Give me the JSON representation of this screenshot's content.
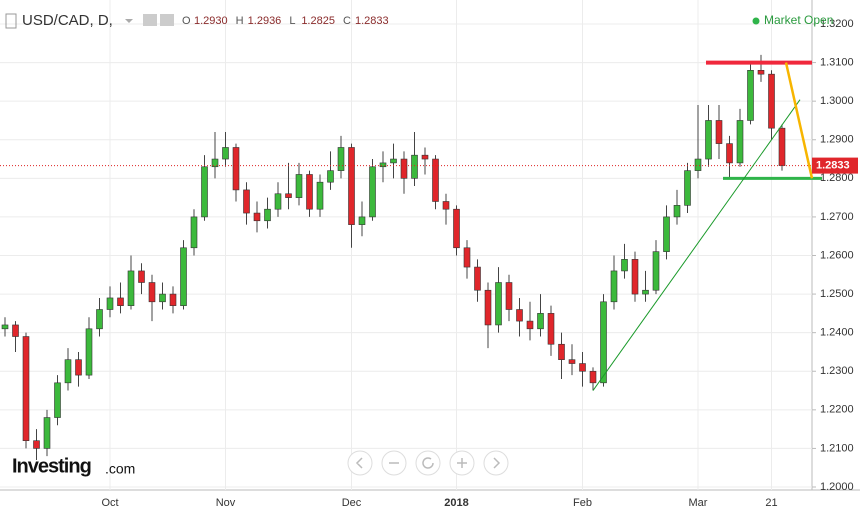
{
  "header": {
    "symbol": "USD/CAD, D,",
    "ohlc": [
      {
        "key": "O",
        "value": {
          "value": 1.293,
          "label": "1.2930"
        }
      },
      {
        "key": "H",
        "value": {
          "value": 1.2936,
          "label": "1.2936"
        }
      },
      {
        "key": "L",
        "value": {
          "value": 1.2825,
          "label": "1.2825"
        }
      },
      {
        "key": "C",
        "value": {
          "value": 1.2833,
          "label": "1.2833"
        }
      }
    ],
    "status": "Market Open"
  },
  "logo": {
    "brand": "Investing",
    "suffix": ".com"
  },
  "chart_data": {
    "type": "candlestick",
    "categories": [
      null,
      null,
      null,
      null,
      null,
      null,
      null,
      null,
      null,
      null,
      "Oct",
      null,
      null,
      null,
      null,
      null,
      null,
      null,
      null,
      null,
      null,
      "Nov",
      null,
      null,
      null,
      null,
      null,
      null,
      null,
      null,
      null,
      null,
      null,
      "Dec",
      null,
      null,
      null,
      null,
      null,
      null,
      null,
      null,
      null,
      "2018",
      null,
      null,
      null,
      null,
      null,
      null,
      null,
      null,
      null,
      null,
      null,
      "Feb",
      null,
      null,
      null,
      null,
      null,
      null,
      null,
      null,
      null,
      null,
      "Mar",
      null,
      null,
      null,
      null,
      null,
      null,
      "21",
      null
    ],
    "open": [
      1.241,
      1.242,
      1.239,
      1.212,
      1.21,
      1.218,
      1.227,
      1.233,
      1.229,
      1.241,
      1.246,
      1.249,
      1.247,
      1.256,
      1.253,
      1.248,
      1.25,
      1.247,
      1.262,
      1.27,
      1.283,
      1.285,
      1.288,
      1.277,
      1.271,
      1.269,
      1.272,
      1.276,
      1.275,
      1.281,
      1.272,
      1.279,
      1.282,
      1.288,
      1.268,
      1.27,
      1.283,
      1.284,
      1.285,
      1.28,
      1.286,
      1.285,
      1.274,
      1.272,
      1.262,
      1.257,
      1.251,
      1.242,
      1.253,
      1.246,
      1.243,
      1.241,
      1.245,
      1.237,
      1.233,
      1.232,
      1.23,
      1.227,
      1.248,
      1.256,
      1.259,
      1.25,
      1.251,
      1.261,
      1.27,
      1.273,
      1.282,
      1.285,
      1.295,
      1.289,
      1.284,
      1.295,
      1.308,
      1.307,
      1.293
    ],
    "high": [
      1.244,
      1.243,
      1.24,
      1.215,
      1.22,
      1.229,
      1.236,
      1.235,
      1.244,
      1.249,
      1.252,
      1.253,
      1.26,
      1.258,
      1.255,
      1.253,
      1.252,
      1.264,
      1.272,
      1.286,
      1.292,
      1.292,
      1.289,
      1.279,
      1.274,
      1.275,
      1.279,
      1.284,
      1.284,
      1.282,
      1.281,
      1.287,
      1.291,
      1.289,
      1.274,
      1.285,
      1.287,
      1.289,
      1.287,
      1.292,
      1.288,
      1.286,
      1.276,
      1.273,
      1.264,
      1.259,
      1.253,
      1.257,
      1.255,
      1.249,
      1.248,
      1.25,
      1.247,
      1.24,
      1.237,
      1.235,
      1.231,
      1.25,
      1.26,
      1.263,
      1.261,
      1.256,
      1.264,
      1.273,
      1.277,
      1.284,
      1.299,
      1.299,
      1.299,
      1.291,
      1.298,
      1.31,
      1.312,
      1.308,
      1.294
    ],
    "low": [
      1.239,
      1.235,
      1.21,
      1.207,
      1.208,
      1.216,
      1.225,
      1.226,
      1.228,
      1.239,
      1.244,
      1.245,
      1.246,
      1.25,
      1.243,
      1.246,
      1.245,
      1.246,
      1.26,
      1.269,
      1.28,
      1.283,
      1.274,
      1.268,
      1.266,
      1.267,
      1.27,
      1.272,
      1.273,
      1.27,
      1.27,
      1.277,
      1.28,
      1.262,
      1.265,
      1.269,
      1.279,
      1.28,
      1.276,
      1.278,
      1.281,
      1.272,
      1.268,
      1.26,
      1.254,
      1.248,
      1.236,
      1.24,
      1.243,
      1.239,
      1.238,
      1.239,
      1.234,
      1.228,
      1.229,
      1.226,
      1.225,
      1.226,
      1.246,
      1.254,
      1.248,
      1.248,
      1.25,
      1.259,
      1.268,
      1.271,
      1.28,
      1.283,
      1.285,
      1.28,
      1.283,
      1.294,
      1.305,
      1.29,
      1.282
    ],
    "close": [
      1.242,
      1.239,
      1.212,
      1.21,
      1.218,
      1.227,
      1.233,
      1.229,
      1.241,
      1.246,
      1.249,
      1.247,
      1.256,
      1.253,
      1.248,
      1.25,
      1.247,
      1.262,
      1.27,
      1.283,
      1.285,
      1.288,
      1.277,
      1.271,
      1.269,
      1.272,
      1.276,
      1.275,
      1.281,
      1.272,
      1.279,
      1.282,
      1.288,
      1.268,
      1.27,
      1.283,
      1.284,
      1.285,
      1.28,
      1.286,
      1.285,
      1.274,
      1.272,
      1.262,
      1.257,
      1.251,
      1.242,
      1.253,
      1.246,
      1.243,
      1.241,
      1.245,
      1.237,
      1.233,
      1.232,
      1.23,
      1.227,
      1.248,
      1.256,
      1.259,
      1.25,
      1.251,
      1.261,
      1.27,
      1.273,
      1.282,
      1.285,
      1.295,
      1.289,
      1.284,
      1.295,
      1.308,
      1.307,
      1.293,
      1.2833
    ],
    "up_color": "#3cb93c",
    "down_color": "#e0262b",
    "last_price": 1.2833,
    "levels": [
      {
        "value": 1.31,
        "color": "#f0283c"
      },
      {
        "value": 1.28,
        "color": "#2fb44a"
      }
    ],
    "ylim": [
      1.1995,
      1.3255
    ],
    "yticks": [
      {
        "value": 1.2,
        "label": "1.2000"
      },
      {
        "value": 1.21,
        "label": "1.2100"
      },
      {
        "value": 1.22,
        "label": "1.2200"
      },
      {
        "value": 1.23,
        "label": "1.2300"
      },
      {
        "value": 1.24,
        "label": "1.2400"
      },
      {
        "value": 1.25,
        "label": "1.2500"
      },
      {
        "value": 1.26,
        "label": "1.2600"
      },
      {
        "value": 1.27,
        "label": "1.2700"
      },
      {
        "value": 1.28,
        "label": "1.2800"
      },
      {
        "value": 1.29,
        "label": "1.2900"
      },
      {
        "value": 1.3,
        "label": "1.3000"
      },
      {
        "value": 1.31,
        "label": "1.3100"
      },
      {
        "value": 1.32,
        "label": "1.3200"
      }
    ],
    "grid": true
  }
}
